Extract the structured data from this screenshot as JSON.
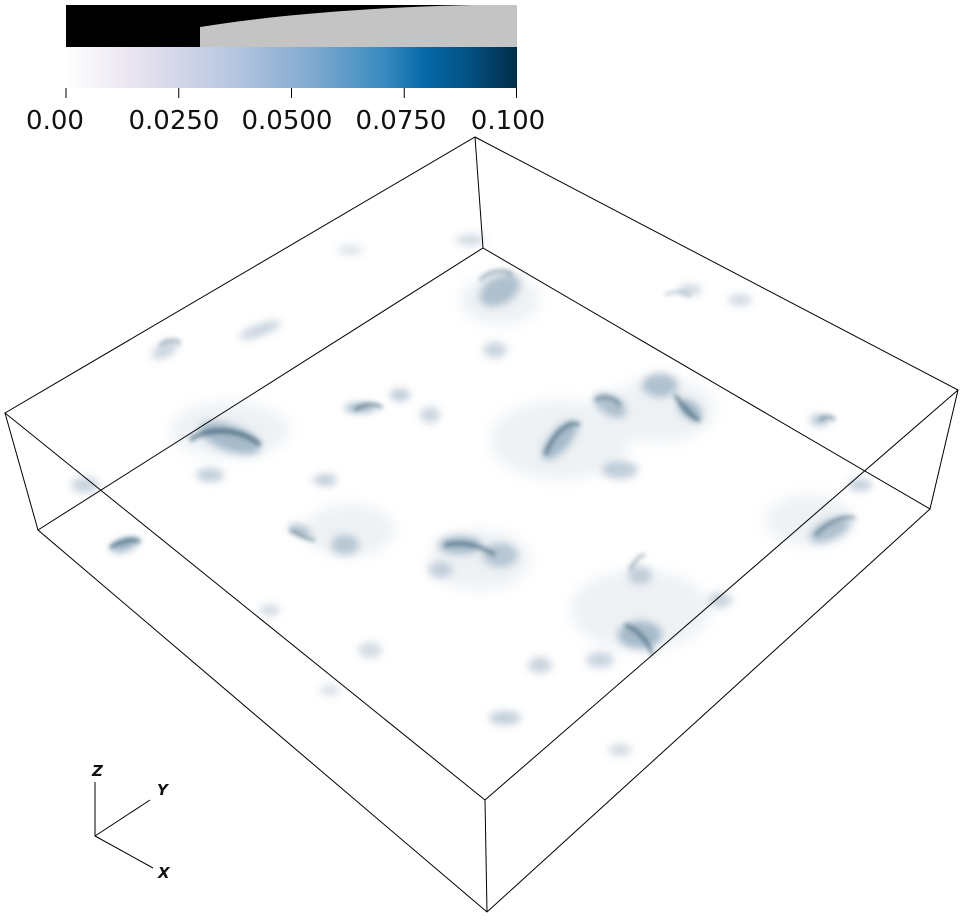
{
  "colorbar": {
    "ticks": [
      "0.00",
      "0.0250",
      "0.0500",
      "0.0750",
      "0.100"
    ],
    "colormap": [
      "#ffffff",
      "#e9e4f0",
      "#bcc9e2",
      "#7fa9d0",
      "#3a8cc0",
      "#0568a8",
      "#034f7f",
      "#022c48"
    ],
    "opacity_fill_color": "#c4c4c4",
    "opacity_background_color": "#000000"
  },
  "orientation_axes": {
    "x_label": "X",
    "y_label": "Y",
    "z_label": "Z"
  },
  "volume": {
    "outline_color": "#000000",
    "blob_color": "#2f5a78"
  }
}
